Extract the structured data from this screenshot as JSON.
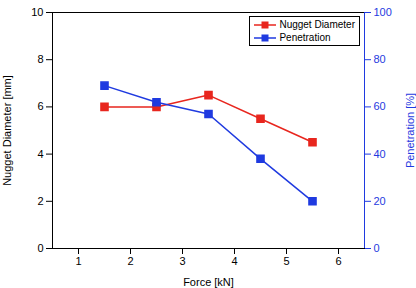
{
  "chart_data": {
    "type": "line",
    "x_label": "Force [kN]",
    "y_label": "Nugget Diameter [mm]",
    "y2_label": "Penetration [%]",
    "x": [
      1.5,
      2.5,
      3.5,
      4.5,
      5.5
    ],
    "series": [
      {
        "name": "Nugget Diameter",
        "color": "#e8261e",
        "values": [
          6.0,
          6.0,
          6.5,
          5.5,
          4.5
        ],
        "marker": "square"
      },
      {
        "name": "Penetration",
        "color": "#1f3ae0",
        "values": [
          69,
          62,
          57,
          38,
          20
        ],
        "marker": "square",
        "axis": "y2"
      }
    ],
    "xlim": [
      0.5,
      6.5
    ],
    "xticks": [
      1,
      2,
      3,
      4,
      5,
      6
    ],
    "ylim": [
      0,
      10
    ],
    "yticks": [
      0,
      2,
      4,
      6,
      8,
      10
    ],
    "y2lim": [
      0,
      100
    ],
    "y2ticks": [
      0,
      20,
      40,
      60,
      80,
      100
    ],
    "legend": "upper right"
  }
}
